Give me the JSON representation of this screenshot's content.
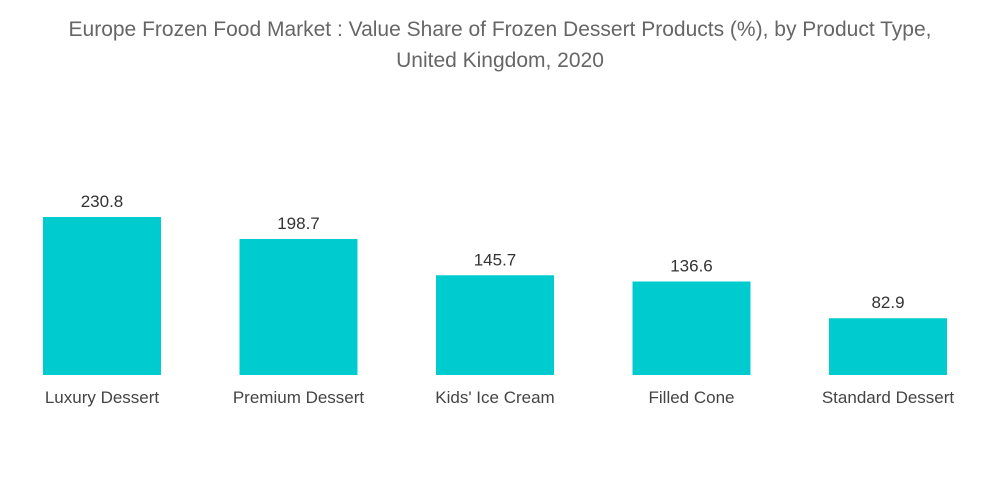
{
  "chart_data": {
    "type": "bar",
    "title_lines": [
      "Europe Frozen Food Market : Value Share of Frozen Dessert Products (%), by Product Type,",
      "United Kingdom, 2020"
    ],
    "categories": [
      "Luxury Dessert",
      "Premium Dessert",
      "Kids' Ice Cream",
      "Filled Cone",
      "Standard Dessert"
    ],
    "values": [
      230.8,
      198.7,
      145.7,
      136.6,
      82.9
    ],
    "value_labels": [
      "230.8",
      "198.7",
      "145.7",
      "136.6",
      "82.9"
    ],
    "bar_color": "#00cccf",
    "ylim": [
      0,
      230.8
    ],
    "grid": false,
    "legend": "none",
    "xlabel": "",
    "ylabel": ""
  }
}
